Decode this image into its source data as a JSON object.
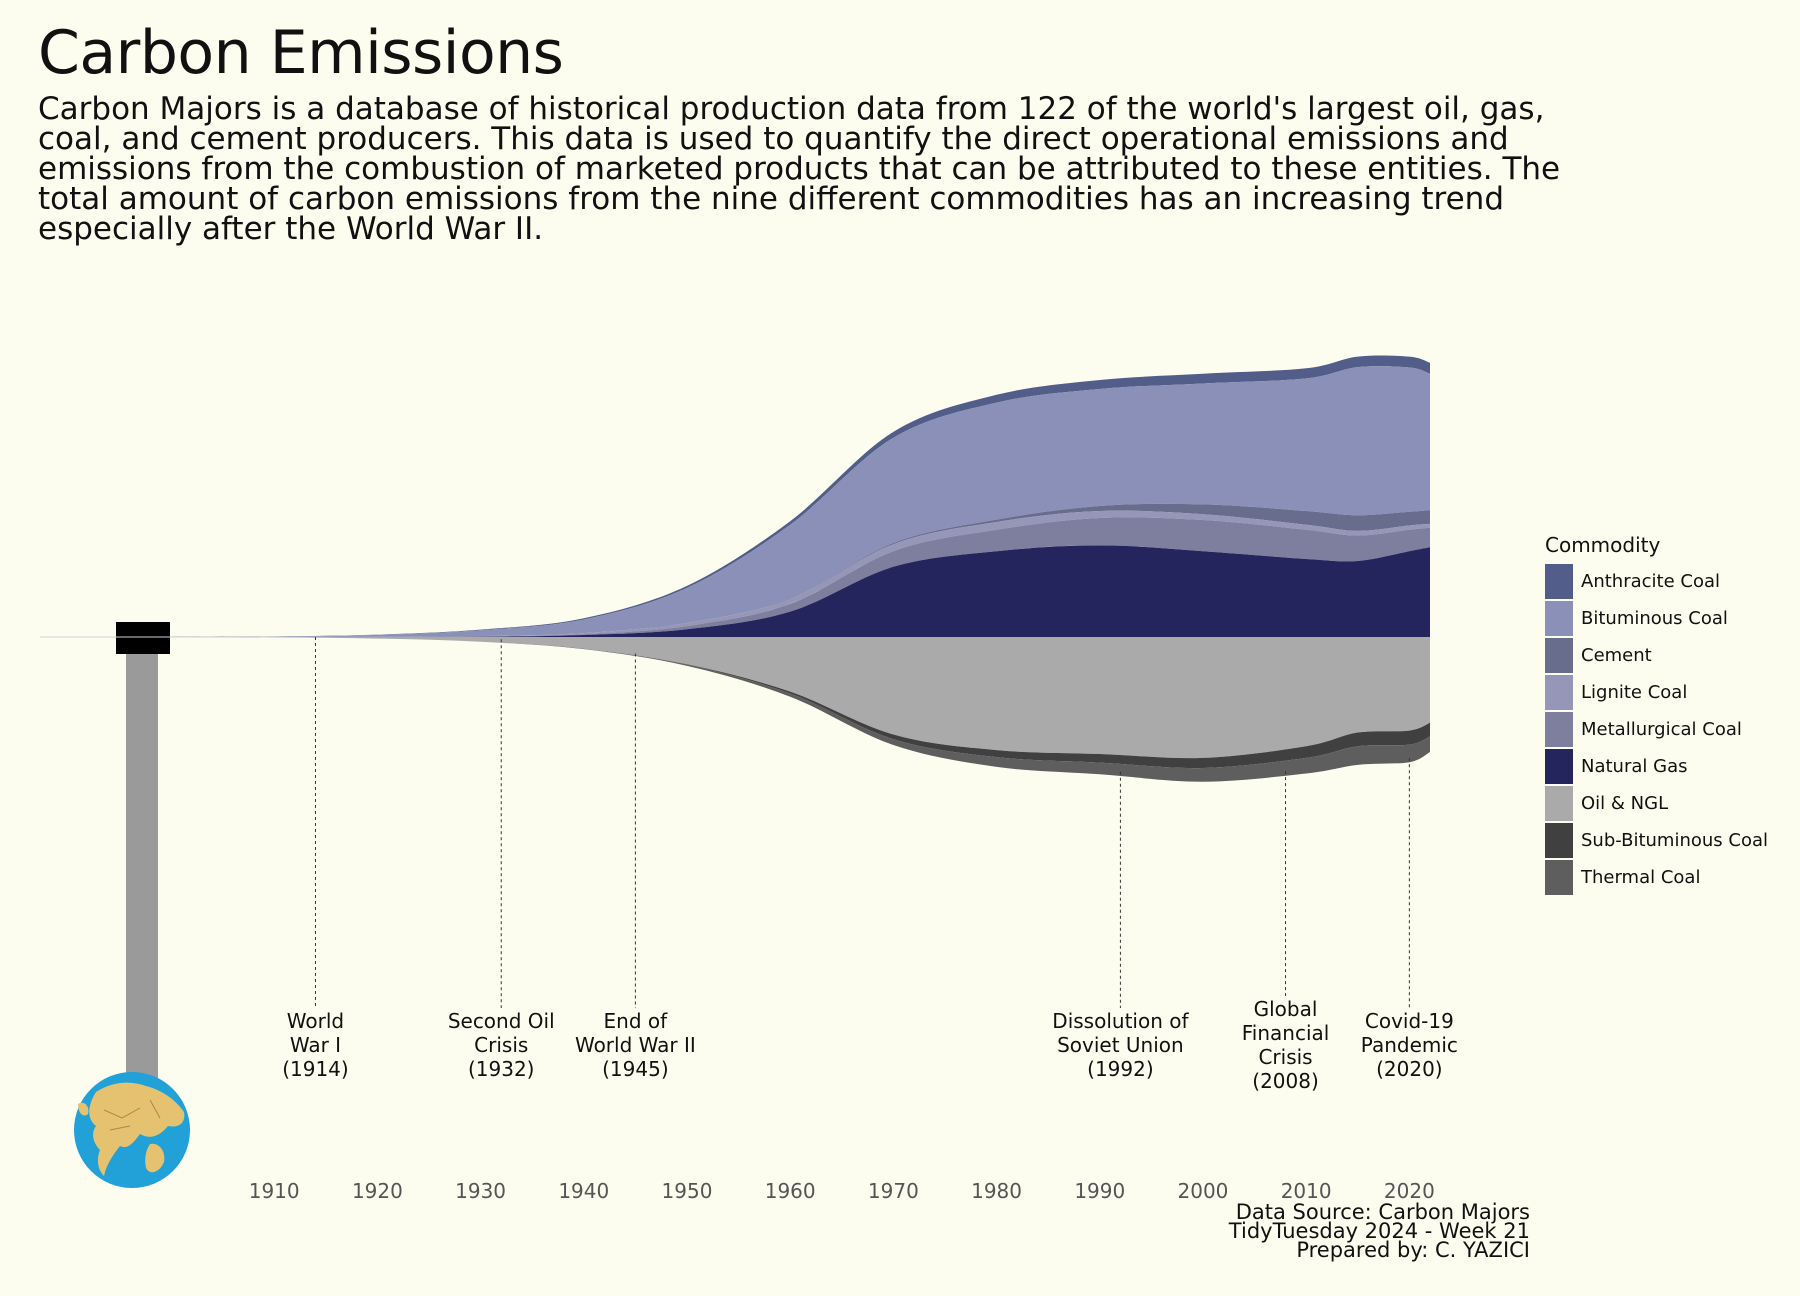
{
  "title": "Carbon Emissions",
  "subtitle": "Carbon Majors is a database of historical production data from 122 of the world's largest oil, gas, coal, and cement producers. This data is used to quantify the direct operational emissions and emissions from the combustion of marketed products that can be attributed to these entities. The total amount of carbon emissions from the nine different commodities has an increasing trend especially after the World War II.",
  "caption": [
    "Data Source: Carbon Majors",
    "TidyTuesday 2024 - Week 21",
    "Prepared by: C. YAZICI"
  ],
  "chart_data": {
    "type": "area",
    "subtype": "streamgraph",
    "x": [
      1900,
      1910,
      1920,
      1930,
      1940,
      1950,
      1960,
      1970,
      1980,
      1990,
      2000,
      2010,
      2015,
      2020,
      2022
    ],
    "xticks": [
      1910,
      1920,
      1930,
      1940,
      1950,
      1960,
      1970,
      1980,
      1990,
      2000,
      2010,
      2020
    ],
    "xlim": [
      1900,
      2022
    ],
    "legend_title": "Commodity",
    "legend_position": "right",
    "series": [
      {
        "name": "Anthracite Coal",
        "color": "#525d89",
        "values": [
          0,
          0.03,
          0.08,
          0.15,
          0.3,
          0.5,
          0.9,
          1.5,
          2.0,
          2.3,
          2.5,
          2.6,
          2.7,
          2.8,
          2.8
        ]
      },
      {
        "name": "Bituminous Coal",
        "color": "#8a90b7",
        "values": [
          0,
          0.1,
          0.5,
          1.5,
          3.5,
          9,
          19,
          27,
          30,
          30,
          31,
          34,
          38,
          37,
          35
        ]
      },
      {
        "name": "Cement",
        "color": "#686d8e",
        "values": [
          0,
          0,
          0,
          0,
          0,
          0,
          0.1,
          0.3,
          0.6,
          1.3,
          2.5,
          3.5,
          4,
          3.5,
          3.5
        ]
      },
      {
        "name": "Lignite Coal",
        "color": "#9596b8",
        "values": [
          0,
          0,
          0.02,
          0.1,
          0.3,
          0.8,
          1.2,
          1.8,
          2.0,
          1.8,
          1.5,
          1.3,
          1.2,
          1.1,
          1.0
        ]
      },
      {
        "name": "Metallurgical Coal",
        "color": "#7e7e9e",
        "values": [
          0,
          0,
          0.02,
          0.1,
          0.2,
          0.8,
          2.0,
          4.0,
          5.5,
          7.0,
          8.0,
          7.5,
          6.5,
          5.5,
          5.0
        ]
      },
      {
        "name": "Natural Gas",
        "color": "#25255e",
        "values": [
          0,
          0,
          0,
          0.05,
          0.5,
          2,
          6.5,
          18,
          22,
          23.5,
          22,
          20,
          19.5,
          22,
          23
        ]
      },
      {
        "name": "Oil & NGL",
        "color": "#aaaaaa",
        "values": [
          0,
          0.1,
          0.4,
          1.2,
          3,
          7,
          14,
          25,
          29,
          30,
          31,
          28,
          24.5,
          24,
          22
        ]
      },
      {
        "name": "Sub-Bituminous Coal",
        "color": "#404040",
        "values": [
          0,
          0,
          0,
          0,
          0,
          0.1,
          0.5,
          1.2,
          1.8,
          2.2,
          2.6,
          3.0,
          3.5,
          3.6,
          3.5
        ]
      },
      {
        "name": "Thermal Coal",
        "color": "#5e5e5e",
        "values": [
          0,
          0,
          0,
          0.02,
          0.1,
          0.3,
          0.8,
          1.5,
          2.5,
          3.0,
          3.5,
          4.0,
          4.8,
          4.5,
          4.0
        ]
      }
    ],
    "events": [
      {
        "label": "World War I (1914)",
        "year": 1914
      },
      {
        "label": "Second Oil Crisis (1932)",
        "year": 1932
      },
      {
        "label": "End of World War II (1945)",
        "year": 1945
      },
      {
        "label": "Dissolution of Soviet Union (1992)",
        "year": 1992
      },
      {
        "label": "Global Financial Crisis (2008)",
        "year": 2008
      },
      {
        "label": "Covid-19 Pandemic (2020)",
        "year": 2020
      }
    ]
  }
}
